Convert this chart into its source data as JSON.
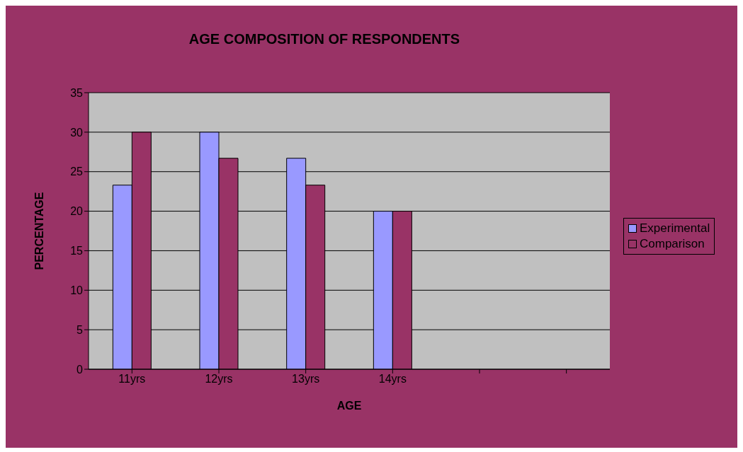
{
  "chart_data": {
    "type": "bar",
    "title": "AGE COMPOSITION OF RESPONDENTS",
    "xlabel": "AGE",
    "ylabel": "PERCENTAGE",
    "categories": [
      "11yrs",
      "12yrs",
      "13yrs",
      "14yrs",
      null,
      null
    ],
    "series": [
      {
        "name": "Experimental",
        "color": "#9999ff",
        "values": [
          23.3,
          30,
          26.7,
          20,
          null,
          null
        ]
      },
      {
        "name": "Comparison",
        "color": "#993366",
        "values": [
          30,
          26.7,
          23.3,
          20,
          null,
          null
        ]
      }
    ],
    "ylim": [
      0,
      35
    ],
    "yticks": [
      0,
      5,
      10,
      15,
      20,
      25,
      30,
      35
    ],
    "grid": "y",
    "legend": "right"
  }
}
